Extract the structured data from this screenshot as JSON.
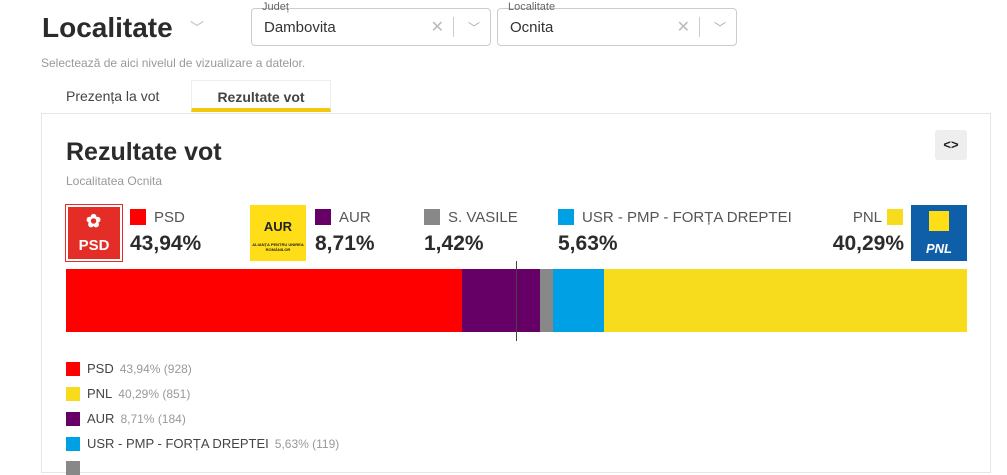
{
  "header": {
    "title": "Localitate",
    "hint": "Selectează de aici nivelul de vizualizare a datelor.",
    "county": {
      "label": "Județ",
      "value": "Dambovita"
    },
    "locality": {
      "label": "Localitate",
      "value": "Ocnita"
    }
  },
  "tabs": [
    {
      "label": "Prezența la vot",
      "active": false
    },
    {
      "label": "Rezultate vot",
      "active": true
    }
  ],
  "card": {
    "title": "Rezultate vot",
    "subtitle": "Localitatea Ocnita",
    "embed_label": "<>"
  },
  "logos": {
    "psd": "PSD",
    "aur": "AUR",
    "aur_sub": "ALIANȚA PENTRU UNIREA ROMÂNILOR",
    "pnl": "PNL"
  },
  "chart_data": {
    "type": "bar",
    "stacked": true,
    "orientation": "horizontal",
    "midline": 50,
    "parties": [
      {
        "name": "PSD",
        "pct": "43,94%",
        "value": 43.94,
        "votes": 928,
        "color": "#ff0000"
      },
      {
        "name": "AUR",
        "pct": "8,71%",
        "value": 8.71,
        "votes": 184,
        "color": "#660066"
      },
      {
        "name": "S. VASILE",
        "pct": "1,42%",
        "value": 1.42,
        "color": "#888888"
      },
      {
        "name": "USR - PMP - FORȚA DREPTEI",
        "pct": "5,63%",
        "value": 5.63,
        "votes": 119,
        "color": "#00a1e4"
      },
      {
        "name": "PNL",
        "pct": "40,29%",
        "value": 40.29,
        "votes": 851,
        "color": "#f7dc1e"
      }
    ]
  },
  "legend": [
    {
      "name": "PSD",
      "value": "43,94% (928)",
      "color": "#ff0000"
    },
    {
      "name": "PNL",
      "value": "40,29% (851)",
      "color": "#f7dc1e"
    },
    {
      "name": "AUR",
      "value": "8,71% (184)",
      "color": "#660066"
    },
    {
      "name": "USR - PMP - FORȚA DREPTEI",
      "value": "5,63% (119)",
      "color": "#00a1e4"
    },
    {
      "name": "",
      "value": "",
      "color": "#888888"
    }
  ]
}
